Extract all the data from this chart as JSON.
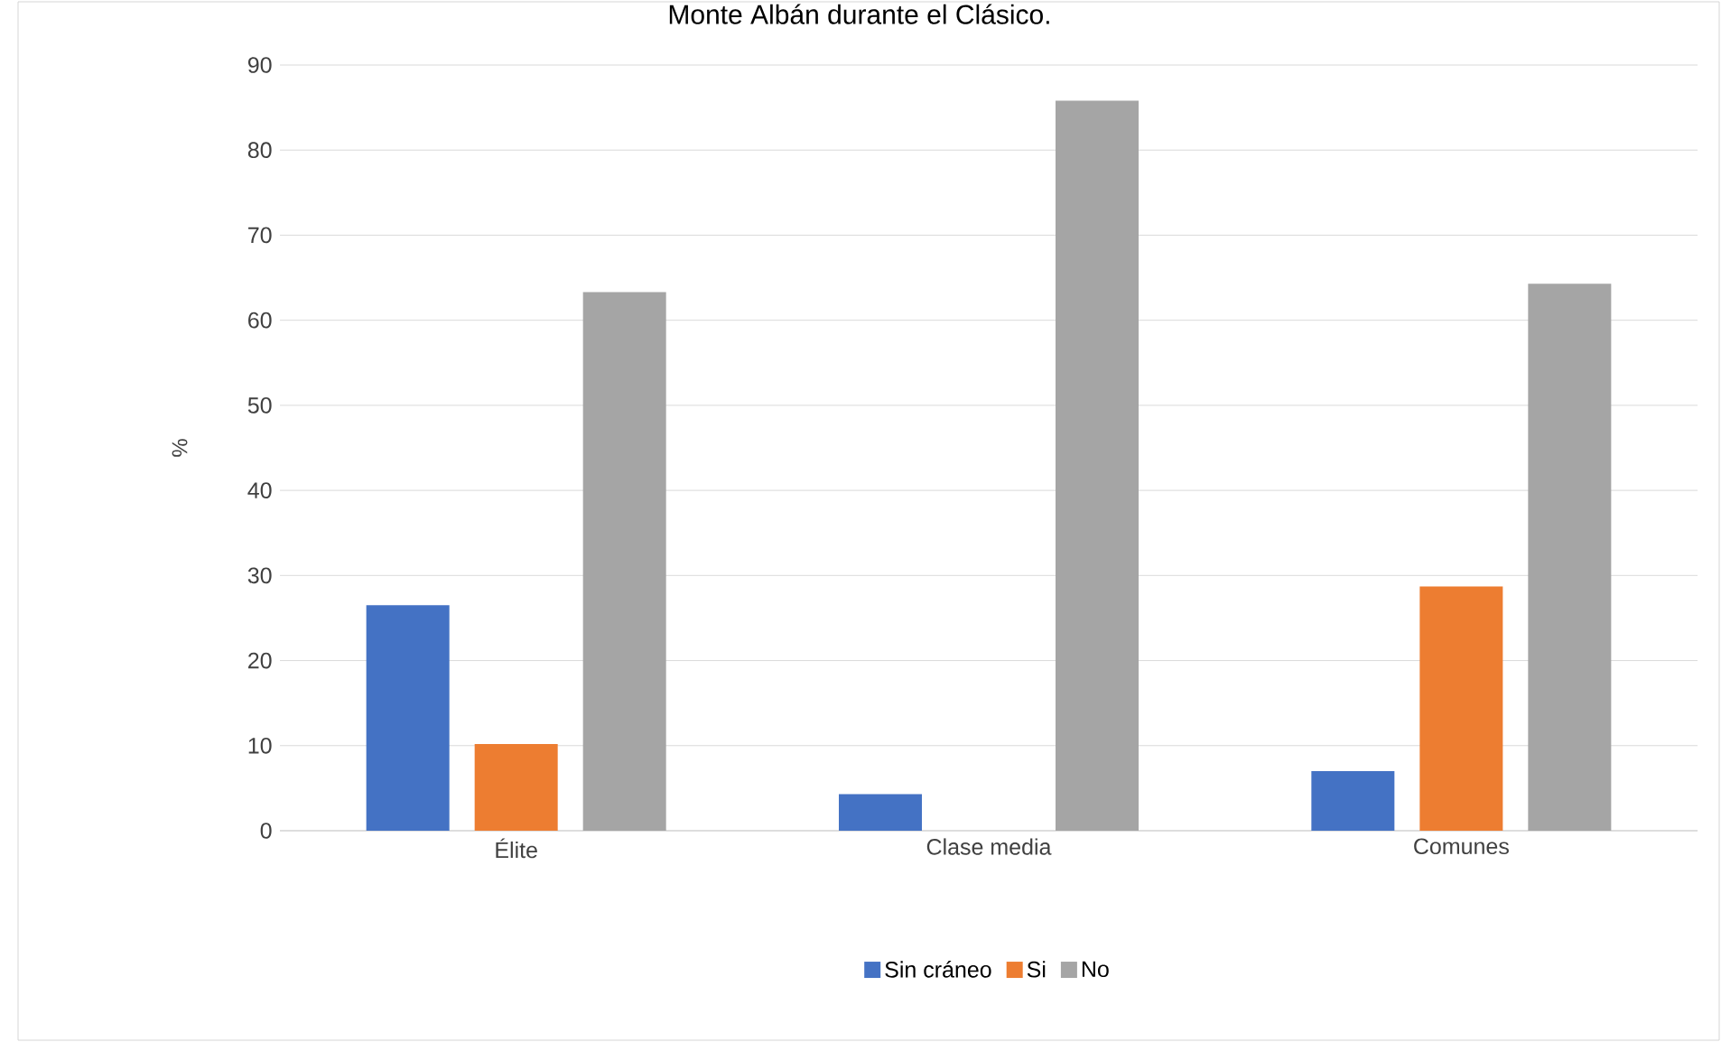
{
  "chart_data": {
    "type": "bar",
    "title": "Monte Albán durante el Clásico.",
    "ylabel": "%",
    "categories": [
      "Élite",
      "Clase media",
      "Comunes"
    ],
    "series": [
      {
        "name": "Sin cráneo",
        "color": "#4472c4",
        "values": [
          26.5,
          4.3,
          7.0
        ]
      },
      {
        "name": "Si",
        "color": "#ed7d31",
        "values": [
          10.2,
          0,
          28.7
        ]
      },
      {
        "name": "No",
        "color": "#a5a5a5",
        "values": [
          63.3,
          85.8,
          64.3
        ]
      }
    ],
    "ylim": [
      0,
      90
    ],
    "yticks": [
      0,
      10,
      20,
      30,
      40,
      50,
      60,
      70,
      80,
      90
    ],
    "grid": "y",
    "legend": "bottom"
  }
}
